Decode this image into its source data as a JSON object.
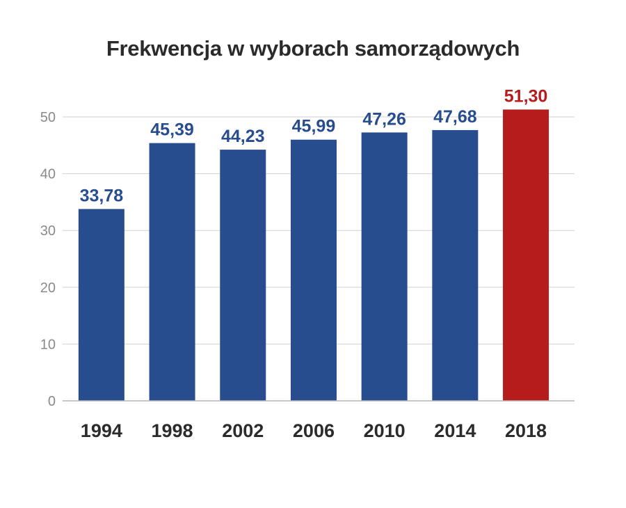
{
  "chart_data": {
    "type": "bar",
    "title": "Frekwencja w wyborach samorządowych",
    "xlabel": "",
    "ylabel": "",
    "categories": [
      "1994",
      "1998",
      "2002",
      "2006",
      "2010",
      "2014",
      "2018"
    ],
    "values": [
      33.78,
      45.39,
      44.23,
      45.99,
      47.26,
      47.68,
      51.3
    ],
    "value_labels": [
      "33,78",
      "45,39",
      "44,23",
      "45,99",
      "47,26",
      "47,68",
      "51,30"
    ],
    "ylim": [
      0,
      50
    ],
    "yticks": [
      "0",
      "10",
      "20",
      "30",
      "40",
      "50"
    ],
    "grid": true,
    "legend": "none",
    "colors": {
      "bar": "#274d8f",
      "highlight_bar": "#b71c1c",
      "highlight_index": 6,
      "label": "#274d8f",
      "highlight_label": "#b71c1c",
      "grid": "#d0d0d0"
    }
  }
}
